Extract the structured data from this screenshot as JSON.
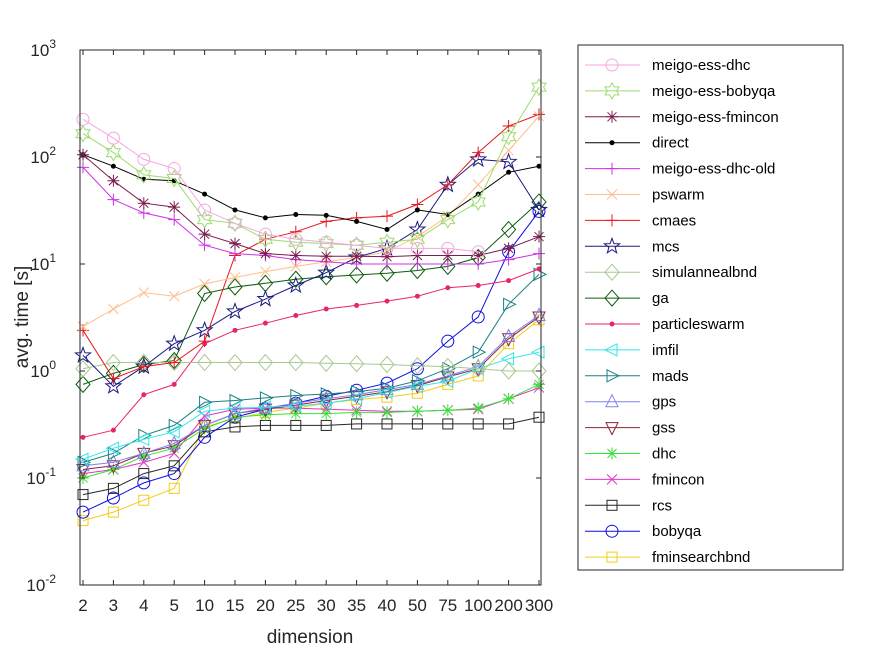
{
  "chart_data": {
    "type": "line",
    "xlabel": "dimension",
    "ylabel": "avg. time [s]",
    "yscale": "log",
    "ylim": [
      0.01,
      1000
    ],
    "y_ticks": [
      {
        "base": "10",
        "exp": "-2"
      },
      {
        "base": "10",
        "exp": "-1"
      },
      {
        "base": "10",
        "exp": "0"
      },
      {
        "base": "10",
        "exp": "1"
      },
      {
        "base": "10",
        "exp": "2"
      },
      {
        "base": "10",
        "exp": "3"
      }
    ],
    "categories": [
      "2",
      "3",
      "4",
      "5",
      "10",
      "15",
      "20",
      "25",
      "30",
      "35",
      "40",
      "50",
      "75",
      "100",
      "200",
      "300"
    ],
    "grid": false,
    "legend_position": "outside-right",
    "series": [
      {
        "name": "meigo-ess-dhc",
        "color": "#f4a6e0",
        "marker": "circle",
        "values": [
          225,
          150,
          95,
          78,
          32,
          24,
          19,
          17,
          16,
          15,
          14,
          14,
          14,
          13,
          null,
          null
        ]
      },
      {
        "name": "meigo-ess-bobyqa",
        "color": "#9bdc6e",
        "marker": "hexagram",
        "values": [
          165,
          110,
          68,
          63,
          26,
          24,
          17,
          16,
          15.5,
          15,
          16,
          17,
          26,
          38,
          155,
          450
        ]
      },
      {
        "name": "meigo-ess-fmincon",
        "color": "#7b1c4f",
        "marker": "asterisk",
        "values": [
          105,
          60,
          37,
          34,
          19,
          15.5,
          12.5,
          12,
          11.8,
          11.8,
          11.7,
          12,
          12,
          12,
          14,
          18
        ]
      },
      {
        "name": "direct",
        "color": "#000000",
        "marker": "dot",
        "values": [
          105,
          82,
          62,
          60,
          45,
          32,
          27,
          29,
          28.5,
          25,
          21,
          32,
          29,
          45,
          72,
          82
        ]
      },
      {
        "name": "meigo-ess-dhc-old",
        "color": "#cc33e6",
        "marker": "plus",
        "values": [
          80,
          40,
          30,
          26,
          15,
          12.5,
          12,
          11,
          10.5,
          10,
          10,
          10,
          10,
          10,
          11,
          12.5
        ]
      },
      {
        "name": "pswarm",
        "color": "#ffbe8c",
        "marker": "x",
        "values": [
          2.6,
          3.8,
          5.4,
          5,
          6.5,
          7.5,
          8.5,
          9.5,
          10.5,
          11.5,
          13,
          18,
          28,
          55,
          115,
          240
        ]
      },
      {
        "name": "cmaes",
        "color": "#e6171c",
        "marker": "plus",
        "values": [
          2.4,
          0.85,
          1.1,
          1.2,
          1.9,
          12,
          17,
          20,
          25,
          27,
          28,
          36,
          55,
          110,
          195,
          250
        ]
      },
      {
        "name": "mcs",
        "color": "#1a1a80",
        "marker": "pentagram",
        "values": [
          1.4,
          0.72,
          1.1,
          1.8,
          2.4,
          3.6,
          4.7,
          6.3,
          8.3,
          11.5,
          14,
          21,
          55,
          95,
          90,
          32
        ]
      },
      {
        "name": "simulannealbnd",
        "color": "#a8c890",
        "marker": "diamond",
        "values": [
          1.05,
          1.2,
          1.2,
          1.2,
          1.2,
          1.2,
          1.2,
          1.2,
          1.18,
          1.17,
          1.15,
          1.12,
          1.1,
          1.05,
          1.0,
          1.0
        ]
      },
      {
        "name": "ga",
        "color": "#0d5c0d",
        "marker": "diamond",
        "values": [
          0.75,
          0.95,
          1.15,
          1.25,
          5.3,
          6.1,
          6.6,
          7.2,
          7.6,
          7.9,
          8.2,
          8.7,
          9.5,
          11.5,
          21,
          38
        ]
      },
      {
        "name": "particleswarm",
        "color": "#e6266b",
        "marker": "dot",
        "values": [
          0.24,
          0.28,
          0.6,
          0.75,
          1.8,
          2.4,
          2.8,
          3.3,
          3.8,
          4.1,
          4.5,
          5,
          6,
          6.3,
          7,
          9
        ]
      },
      {
        "name": "imfil",
        "color": "#33e6e6",
        "marker": "triangle-left",
        "values": [
          0.15,
          0.19,
          0.23,
          0.27,
          0.42,
          0.45,
          0.46,
          0.47,
          0.5,
          0.55,
          0.63,
          0.72,
          0.8,
          1.05,
          1.3,
          1.5
        ]
      },
      {
        "name": "mads",
        "color": "#1a8080",
        "marker": "triangle-right",
        "values": [
          0.14,
          0.17,
          0.25,
          0.31,
          0.51,
          0.53,
          0.56,
          0.59,
          0.61,
          0.64,
          0.69,
          0.81,
          1.05,
          1.5,
          4.2,
          8
        ]
      },
      {
        "name": "gps",
        "color": "#8080f2",
        "marker": "triangle-up",
        "values": [
          0.13,
          0.14,
          0.17,
          0.21,
          0.31,
          0.4,
          0.45,
          0.5,
          0.55,
          0.6,
          0.67,
          0.75,
          0.9,
          1.1,
          2.1,
          3.3
        ]
      },
      {
        "name": "gss",
        "color": "#8c2633",
        "marker": "triangle-down",
        "values": [
          0.12,
          0.13,
          0.17,
          0.2,
          0.31,
          0.4,
          0.44,
          0.48,
          0.53,
          0.58,
          0.64,
          0.73,
          0.88,
          1.05,
          2.0,
          3.2
        ]
      },
      {
        "name": "dhc",
        "color": "#33e633",
        "marker": "asterisk",
        "values": [
          0.1,
          0.12,
          0.16,
          0.19,
          0.29,
          0.37,
          0.39,
          0.4,
          0.4,
          0.41,
          0.41,
          0.42,
          0.43,
          0.45,
          0.55,
          0.75
        ]
      },
      {
        "name": "fmincon",
        "color": "#e633cc",
        "marker": "x",
        "values": [
          0.11,
          0.12,
          0.14,
          0.17,
          0.38,
          0.44,
          0.45,
          0.45,
          0.44,
          0.43,
          0.42,
          0.42,
          0.43,
          0.44,
          0.55,
          0.7
        ]
      },
      {
        "name": "rcs",
        "color": "#262626",
        "marker": "square",
        "values": [
          0.07,
          0.08,
          0.11,
          0.13,
          0.27,
          0.3,
          0.31,
          0.31,
          0.31,
          0.32,
          0.32,
          0.32,
          0.32,
          0.32,
          0.32,
          0.37
        ]
      },
      {
        "name": "bobyqa",
        "color": "#0d0de6",
        "marker": "circle",
        "values": [
          0.048,
          0.065,
          0.09,
          0.11,
          0.24,
          0.37,
          0.44,
          0.5,
          0.58,
          0.66,
          0.77,
          1.05,
          1.9,
          3.2,
          13,
          31
        ]
      },
      {
        "name": "fminsearchbnd",
        "color": "#f2cc1a",
        "marker": "square",
        "values": [
          0.04,
          0.048,
          0.062,
          0.08,
          0.3,
          0.36,
          0.41,
          0.45,
          0.5,
          0.54,
          0.57,
          0.62,
          0.75,
          0.9,
          1.8,
          3
        ]
      }
    ]
  }
}
